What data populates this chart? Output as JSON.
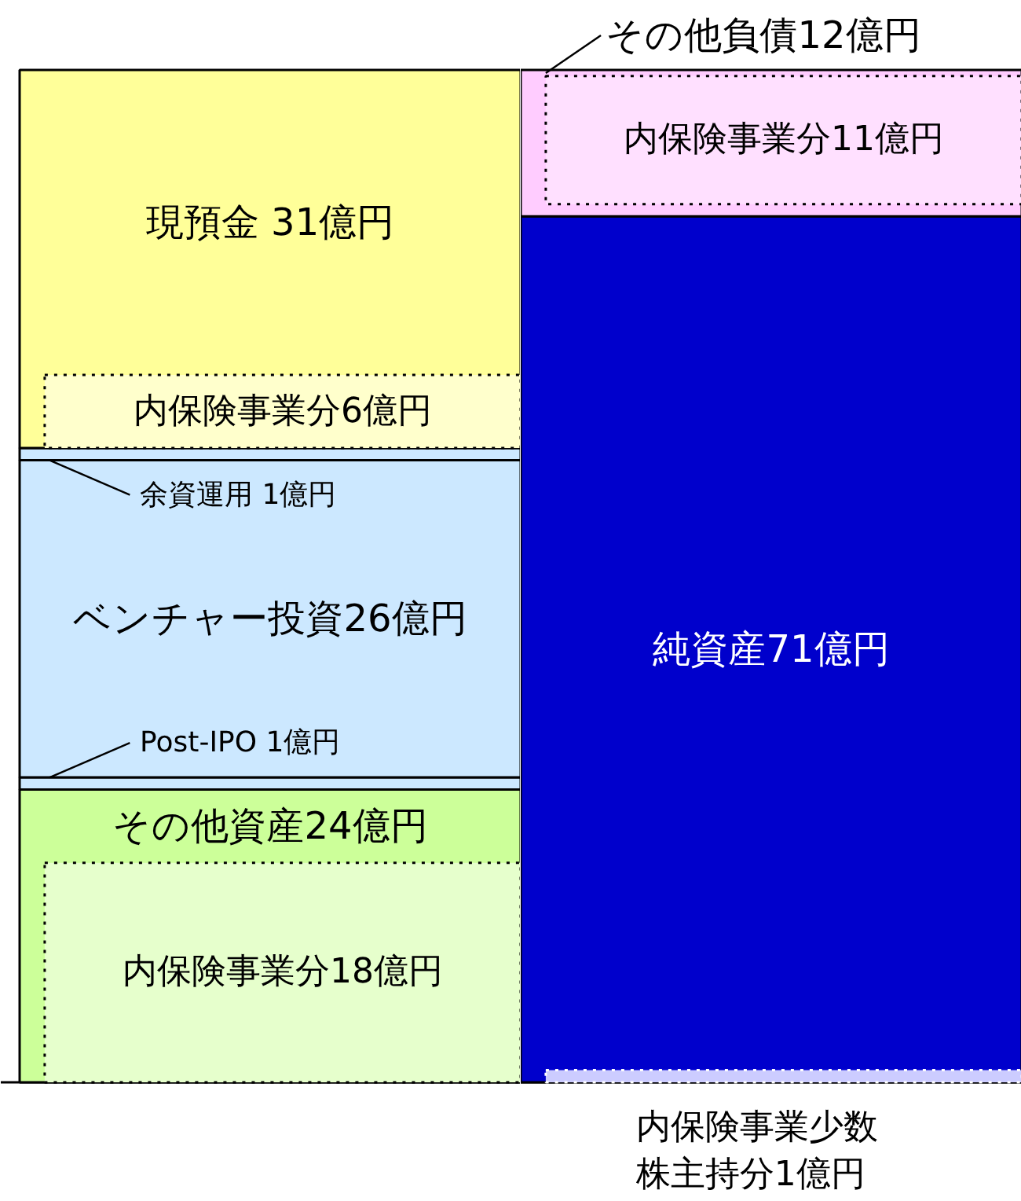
{
  "chart_data": [
    {
      "type": "bar",
      "stacked": true,
      "categories": [
        null
      ],
      "series": [
        {
          "color": "#ccff99",
          "values": [
            24
          ],
          "value_labels": [
            "その他資産24億円"
          ]
        },
        {
          "color": "#cce8ff",
          "values": [
            1
          ],
          "value_labels": [
            "Post-IPO 1億円"
          ]
        },
        {
          "color": "#cce8ff",
          "values": [
            26
          ],
          "value_labels": [
            "ベンチャー投資26億円"
          ]
        },
        {
          "color": "#cce8ff",
          "values": [
            1
          ],
          "value_labels": [
            "余資運用 1億円"
          ]
        },
        {
          "color": "#ffff99",
          "values": [
            31
          ],
          "value_labels": [
            "現預金 31億円"
          ]
        }
      ],
      "bands": [
        {
          "axis": "y",
          "from": 0,
          "to": 18,
          "label": "内保険事業分18億円",
          "color": "#e6ffcc"
        },
        {
          "axis": "y",
          "from": 52,
          "to": 58,
          "label": "内保険事業分6億円",
          "color": "#ffffcc"
        }
      ]
    },
    {
      "type": "bar",
      "stacked": true,
      "categories": [
        null
      ],
      "series": [
        {
          "color": "#0000cc",
          "values": [
            71
          ],
          "value_labels": [
            "純資産71億円"
          ]
        },
        {
          "color": "#ffccff",
          "values": [
            12
          ],
          "value_labels": [
            "その他負債12億円"
          ]
        }
      ],
      "bands": [
        {
          "axis": "y",
          "from": 72,
          "to": 82.5,
          "label": "内保険事業分11億円",
          "color": "#ffe0ff"
        },
        {
          "axis": "y",
          "from": 0,
          "to": 1,
          "label": "内保険事業少数株主持分1億円",
          "color": "#ccccff"
        }
      ]
    }
  ]
}
